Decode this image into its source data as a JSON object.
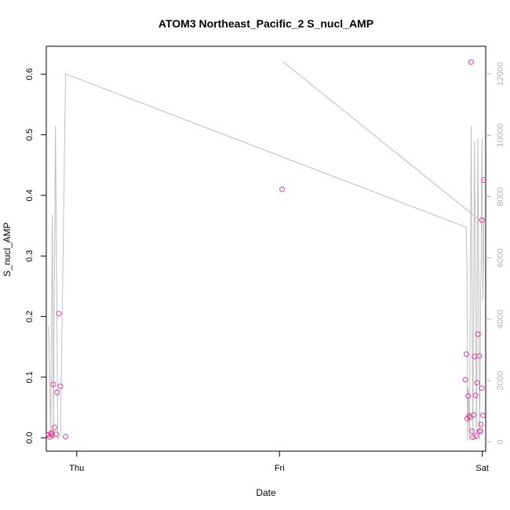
{
  "chart_data": {
    "type": "scatter",
    "title": "ATOM3 Northeast_Pacific_2 S_nucl_AMP",
    "xlabel": "Date",
    "ylabel": "S_nucl_AMP",
    "x_ticks": [
      "Thu",
      "Fri",
      "Sat"
    ],
    "xlim": [
      "Wed 20:24",
      "Sat 00:24"
    ],
    "ylim": [
      -0.022,
      0.646
    ],
    "y_ticks": [
      0.0,
      0.1,
      0.2,
      0.3,
      0.4,
      0.5,
      0.6
    ],
    "y2lim": [
      -300,
      12900
    ],
    "y2_ticks": [
      0,
      2000,
      4000,
      6000,
      8000,
      10000,
      12000
    ],
    "grid": false,
    "colors": {
      "points": "#e6399b",
      "line": "#bebebe",
      "axis": "#000000",
      "right_axis": "#b3b3b3"
    },
    "series": [
      {
        "kind": "points",
        "points": [
          [
            "Wed 20:41",
            0.005
          ],
          [
            "Wed 20:49",
            0.001
          ],
          [
            "Wed 20:55",
            0.007
          ],
          [
            "Wed 21:02",
            0.008
          ],
          [
            "Wed 21:07",
            0.004
          ],
          [
            "Wed 21:14",
            0.088
          ],
          [
            "Wed 21:22",
            0.017
          ],
          [
            "Wed 21:34",
            0.006
          ],
          [
            "Wed 21:41",
            0.075
          ],
          [
            "Wed 21:53",
            0.205
          ],
          [
            "Wed 22:05",
            0.085
          ],
          [
            "Wed 22:41",
            0.002
          ],
          [
            "Fri 00:19",
            0.41
          ],
          [
            "Fri 22:00",
            0.096
          ],
          [
            "Fri 22:07",
            0.138
          ],
          [
            "Fri 22:12",
            0.032
          ],
          [
            "Fri 22:19",
            0.069
          ],
          [
            "Fri 22:26",
            0.036
          ],
          [
            "Fri 22:34",
            0.034
          ],
          [
            "Fri 22:41",
            0.62
          ],
          [
            "Fri 22:48",
            0.011
          ],
          [
            "Fri 22:53",
            0.001
          ],
          [
            "Fri 22:58",
            0.038
          ],
          [
            "Fri 23:05",
            0.134
          ],
          [
            "Fri 23:12",
            0.07
          ],
          [
            "Fri 23:17",
            0.003
          ],
          [
            "Fri 23:22",
            0.091
          ],
          [
            "Fri 23:29",
            0.171
          ],
          [
            "Fri 23:38",
            0.135
          ],
          [
            "Fri 23:41",
            0.011
          ],
          [
            "Fri 23:46",
            0.011
          ],
          [
            "Fri 23:50",
            0.022
          ],
          [
            "Fri 23:55",
            0.082
          ],
          [
            "Fri 23:58",
            0.359
          ],
          [
            "Sat 00:05",
            0.037
          ],
          [
            "Sat 00:12",
            0.425
          ]
        ]
      },
      {
        "kind": "line",
        "axis": "right",
        "points": [
          [
            "Wed 20:41",
            3800
          ],
          [
            "Wed 20:55",
            150
          ],
          [
            "Wed 21:07",
            7400
          ],
          [
            "Wed 21:14",
            100
          ],
          [
            "Wed 21:29",
            10300
          ],
          [
            "Wed 21:46",
            100
          ],
          [
            "Wed 22:05",
            200
          ],
          [
            "Wed 22:41",
            12000
          ],
          [
            "Fri 22:05",
            7000
          ],
          [
            "Fri 22:12",
            5500
          ],
          [
            "Fri 22:14",
            50
          ],
          [
            "Fri 22:19",
            1800
          ],
          [
            "Fri 22:29",
            50
          ],
          [
            "Fri 22:41",
            10300
          ],
          [
            "Fri 22:53",
            50
          ],
          [
            "Fri 23:05",
            9800
          ],
          [
            "Fri 23:19",
            50
          ],
          [
            "Fri 23:29",
            9900
          ],
          [
            "Fri 23:41",
            50
          ],
          [
            "Fri 23:58",
            9900
          ],
          [
            "Sat 00:05",
            4600
          ],
          [
            "Sat 00:12",
            7300
          ],
          [
            "Fri 23:50",
            7200
          ],
          [
            "Fri 00:24",
            12400
          ]
        ]
      }
    ]
  }
}
